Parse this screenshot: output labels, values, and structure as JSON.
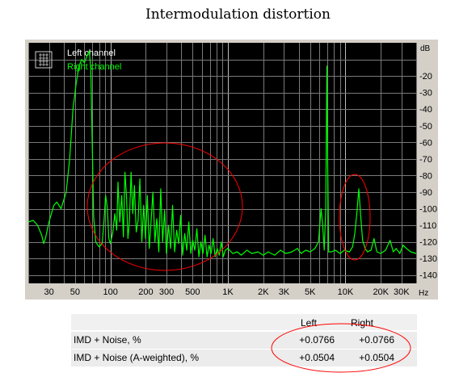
{
  "title": "Intermodulation distortion",
  "chart_data": {
    "type": "line",
    "title": "Intermodulation distortion",
    "xlabel": "Hz",
    "ylabel": "dB",
    "x_scale": "log",
    "xlim": [
      20,
      40000
    ],
    "ylim": [
      -145,
      0
    ],
    "x_ticks": [
      {
        "value": 30,
        "label": "30"
      },
      {
        "value": 50,
        "label": "50"
      },
      {
        "value": 100,
        "label": "100"
      },
      {
        "value": 200,
        "label": "200"
      },
      {
        "value": 300,
        "label": "300"
      },
      {
        "value": 500,
        "label": "500"
      },
      {
        "value": 1000,
        "label": "1K"
      },
      {
        "value": 2000,
        "label": "2K"
      },
      {
        "value": 3000,
        "label": "3K"
      },
      {
        "value": 5000,
        "label": "5K"
      },
      {
        "value": 10000,
        "label": "10K"
      },
      {
        "value": 20000,
        "label": "20K"
      },
      {
        "value": 30000,
        "label": "30K"
      }
    ],
    "y_ticks": [
      {
        "value": -20,
        "label": "-20"
      },
      {
        "value": -30,
        "label": "-30"
      },
      {
        "value": -40,
        "label": "-40"
      },
      {
        "value": -50,
        "label": "-50"
      },
      {
        "value": -60,
        "label": "-60"
      },
      {
        "value": -70,
        "label": "-70"
      },
      {
        "value": -80,
        "label": "-80"
      },
      {
        "value": -90,
        "label": "-90"
      },
      {
        "value": -100,
        "label": "-100"
      },
      {
        "value": -110,
        "label": "-110"
      },
      {
        "value": -120,
        "label": "-120"
      },
      {
        "value": -130,
        "label": "-130"
      },
      {
        "value": -140,
        "label": "-140"
      }
    ],
    "grid": true,
    "legend_position": "top-left",
    "series": [
      {
        "name": "Left channel",
        "color": "#ffffff",
        "visible_trace": false
      },
      {
        "name": "Right channel",
        "color": "#00ff00",
        "points": [
          [
            20,
            -108
          ],
          [
            22,
            -107
          ],
          [
            24,
            -110
          ],
          [
            26,
            -116
          ],
          [
            27,
            -121
          ],
          [
            28,
            -118
          ],
          [
            30,
            -108
          ],
          [
            33,
            -98
          ],
          [
            35,
            -96
          ],
          [
            38,
            -100
          ],
          [
            42,
            -90
          ],
          [
            45,
            -70
          ],
          [
            48,
            -40
          ],
          [
            51,
            -25
          ],
          [
            54,
            -14
          ],
          [
            57,
            -10
          ],
          [
            60,
            -12
          ],
          [
            63,
            -8
          ],
          [
            66,
            -5
          ],
          [
            68,
            -15
          ],
          [
            70,
            -60
          ],
          [
            72,
            -105
          ],
          [
            75,
            -120
          ],
          [
            80,
            -123
          ],
          [
            85,
            -121
          ],
          [
            88,
            -108
          ],
          [
            91,
            -92
          ],
          [
            94,
            -99
          ],
          [
            97,
            -118
          ],
          [
            100,
            -121
          ],
          [
            105,
            -114
          ],
          [
            109,
            -103
          ],
          [
            113,
            -113
          ],
          [
            116,
            -84
          ],
          [
            120,
            -108
          ],
          [
            125,
            -92
          ],
          [
            129,
            -117
          ],
          [
            133,
            -78
          ],
          [
            137,
            -92
          ],
          [
            141,
            -118
          ],
          [
            145,
            -108
          ],
          [
            150,
            -78
          ],
          [
            155,
            -103
          ],
          [
            160,
            -86
          ],
          [
            166,
            -114
          ],
          [
            172,
            -107
          ],
          [
            178,
            -82
          ],
          [
            185,
            -120
          ],
          [
            192,
            -98
          ],
          [
            199,
            -118
          ],
          [
            206,
            -92
          ],
          [
            214,
            -124
          ],
          [
            222,
            -107
          ],
          [
            230,
            -90
          ],
          [
            239,
            -120
          ],
          [
            248,
            -106
          ],
          [
            258,
            -126
          ],
          [
            268,
            -88
          ],
          [
            278,
            -120
          ],
          [
            289,
            -101
          ],
          [
            300,
            -127
          ],
          [
            312,
            -110
          ],
          [
            325,
            -124
          ],
          [
            338,
            -98
          ],
          [
            352,
            -126
          ],
          [
            366,
            -113
          ],
          [
            381,
            -121
          ],
          [
            396,
            -104
          ],
          [
            412,
            -128
          ],
          [
            429,
            -115
          ],
          [
            446,
            -125
          ],
          [
            464,
            -108
          ],
          [
            483,
            -127
          ],
          [
            502,
            -119
          ],
          [
            523,
            -125
          ],
          [
            544,
            -112
          ],
          [
            566,
            -129
          ],
          [
            589,
            -120
          ],
          [
            613,
            -127
          ],
          [
            638,
            -116
          ],
          [
            664,
            -129
          ],
          [
            691,
            -122
          ],
          [
            719,
            -127
          ],
          [
            748,
            -118
          ],
          [
            778,
            -129
          ],
          [
            810,
            -124
          ],
          [
            843,
            -128
          ],
          [
            877,
            -120
          ],
          [
            913,
            -129
          ],
          [
            950,
            -125
          ],
          [
            1000,
            -124
          ],
          [
            1100,
            -127
          ],
          [
            1200,
            -126
          ],
          [
            1300,
            -128
          ],
          [
            1450,
            -125
          ],
          [
            1600,
            -127
          ],
          [
            1800,
            -126
          ],
          [
            2000,
            -128
          ],
          [
            2200,
            -126
          ],
          [
            2500,
            -128
          ],
          [
            2800,
            -125
          ],
          [
            3100,
            -127
          ],
          [
            3500,
            -126
          ],
          [
            3900,
            -124
          ],
          [
            4200,
            -127
          ],
          [
            4600,
            -125
          ],
          [
            5000,
            -126
          ],
          [
            5500,
            -124
          ],
          [
            5900,
            -120
          ],
          [
            6200,
            -100
          ],
          [
            6400,
            -110
          ],
          [
            6600,
            -125
          ],
          [
            6800,
            -100
          ],
          [
            6950,
            -14
          ],
          [
            7050,
            -70
          ],
          [
            7200,
            -126
          ],
          [
            7600,
            -126
          ],
          [
            8200,
            -125
          ],
          [
            9000,
            -127
          ],
          [
            9800,
            -125
          ],
          [
            10800,
            -126
          ],
          [
            11500,
            -123
          ],
          [
            12000,
            -115
          ],
          [
            12500,
            -103
          ],
          [
            13000,
            -88
          ],
          [
            13500,
            -105
          ],
          [
            14000,
            -119
          ],
          [
            14700,
            -124
          ],
          [
            15400,
            -126
          ],
          [
            16500,
            -125
          ],
          [
            17500,
            -118
          ],
          [
            18500,
            -126
          ],
          [
            20000,
            -127
          ],
          [
            22000,
            -125
          ],
          [
            24000,
            -119
          ],
          [
            25500,
            -126
          ],
          [
            27000,
            -124
          ],
          [
            29000,
            -127
          ],
          [
            31000,
            -122
          ],
          [
            33000,
            -124
          ],
          [
            36000,
            -126
          ],
          [
            40000,
            -127
          ]
        ]
      }
    ],
    "annotations": [
      {
        "shape": "ellipse",
        "around": "IMD products 100 Hz – 1.5 kHz",
        "color": "#ff0000"
      },
      {
        "shape": "ellipse",
        "around": "peak near 13 kHz",
        "color": "#ff0000"
      },
      {
        "shape": "ellipse",
        "around": "IMD + Noise values",
        "color": "#ff0000"
      }
    ]
  },
  "results": {
    "header": {
      "left": "Left",
      "right": "Right"
    },
    "rows": [
      {
        "label": "IMD + Noise, %",
        "left": "+0.0766",
        "right": "+0.0766"
      },
      {
        "label": "IMD + Noise (A-weighted), %",
        "left": "+0.0504",
        "right": "+0.0504"
      }
    ]
  }
}
